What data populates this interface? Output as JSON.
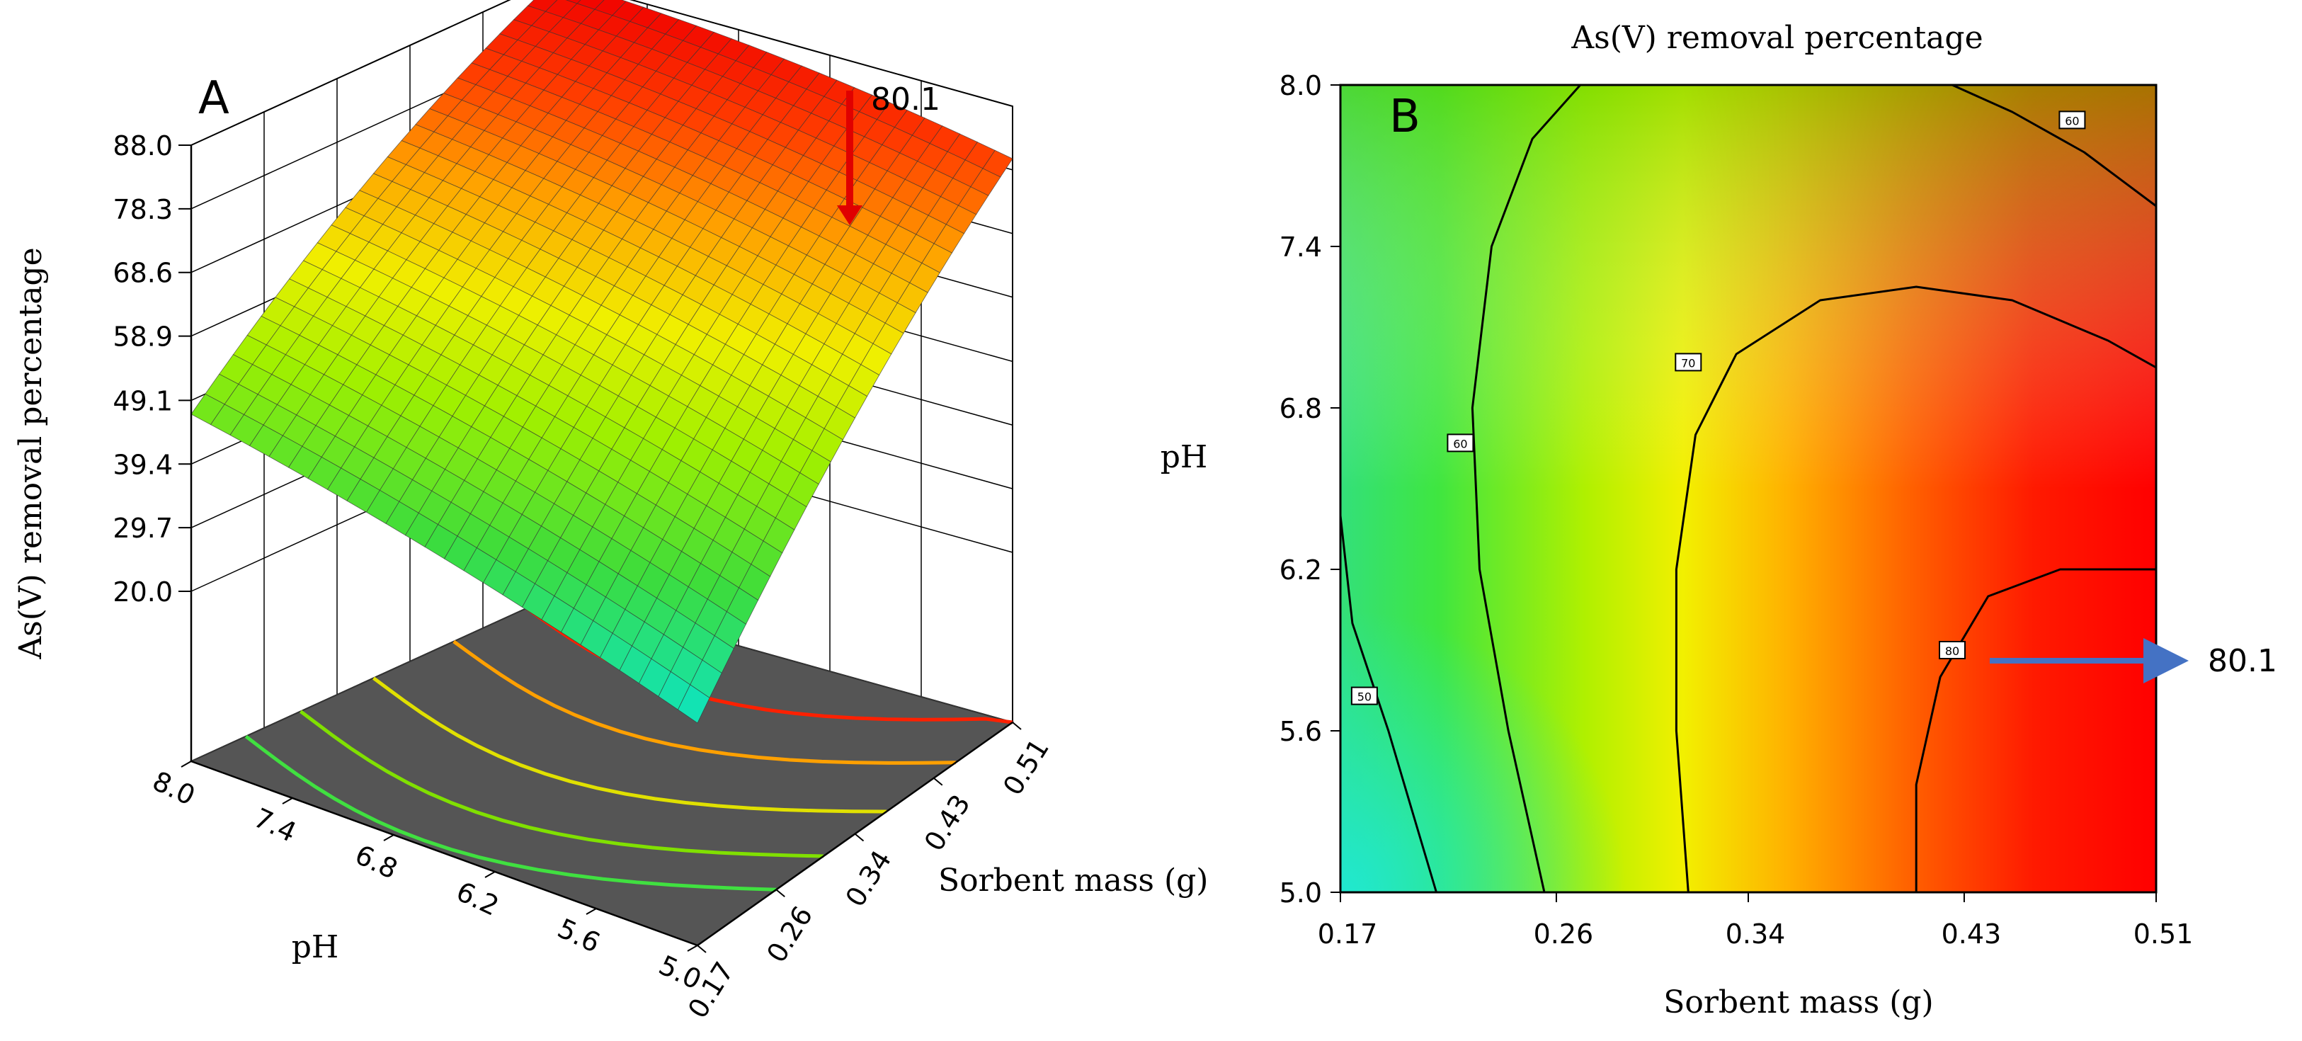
{
  "chart_data": [
    {
      "type": "surface",
      "panel_label": "A",
      "title": "",
      "xlabel": "Sorbent mass (g)",
      "ylabel": "pH",
      "zlabel": "As(V) removal percentage",
      "x_ticks": [
        "0.17",
        "0.26",
        "0.34",
        "0.43",
        "0.51"
      ],
      "y_ticks": [
        "8.0",
        "7.4",
        "6.8",
        "6.2",
        "5.6",
        "5.0"
      ],
      "z_ticks": [
        "88.0",
        "78.3",
        "68.6",
        "58.9",
        "49.1",
        "39.4",
        "29.7",
        "20.0"
      ],
      "xlim": [
        0.17,
        0.51
      ],
      "ylim": [
        5.0,
        8.0
      ],
      "zlim": [
        20.0,
        88.0
      ],
      "corner_values": {
        "mass_0.17_pH_8.0": 47,
        "mass_0.17_pH_5.0": 28,
        "mass_0.51_pH_8.0": 88,
        "mass_0.51_pH_5.0": 80
      },
      "annotation": {
        "text": "80.1",
        "mass": 0.49,
        "pH": 5.9
      }
    },
    {
      "type": "contour",
      "panel_label": "B",
      "title": "As(V) removal percentage",
      "xlabel": "Sorbent mass (g)",
      "ylabel": "pH",
      "x_ticks": [
        "0.17",
        "0.26",
        "0.34",
        "0.43",
        "0.51"
      ],
      "y_ticks": [
        "8.0",
        "7.4",
        "6.8",
        "6.2",
        "5.6",
        "5.0"
      ],
      "xlim": [
        0.17,
        0.51
      ],
      "ylim": [
        5.0,
        8.0
      ],
      "contour_levels": [
        50,
        60,
        70,
        80
      ],
      "contour_labels": [
        "50",
        "60",
        "70",
        "80",
        "60"
      ],
      "annotation": {
        "text": "80.1",
        "mass": 0.43,
        "pH": 5.9
      }
    }
  ]
}
